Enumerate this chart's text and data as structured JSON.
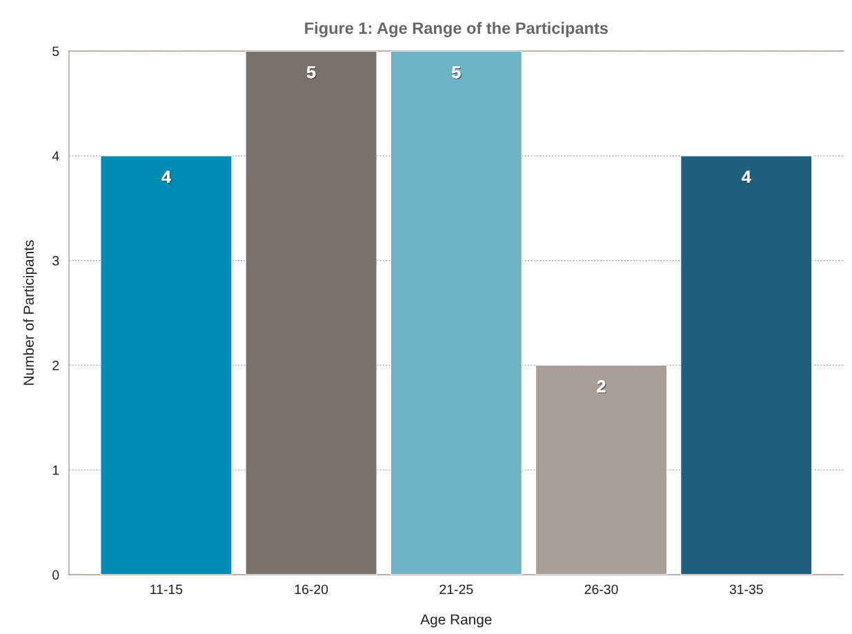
{
  "chart_data": {
    "type": "bar",
    "title": "Figure 1: Age Range of the Participants",
    "xlabel": "Age Range",
    "ylabel": "Number of Participants",
    "categories": [
      "11-15",
      "16-20",
      "21-25",
      "26-30",
      "31-35"
    ],
    "values": [
      4,
      5,
      5,
      2,
      4
    ],
    "colors": [
      "#008bb5",
      "#77726e",
      "#6fb2c6",
      "#a79f96",
      "#20607c"
    ],
    "ylim": [
      0,
      5
    ],
    "yticks": [
      0,
      1,
      2,
      3,
      4,
      5
    ],
    "grid": "y",
    "data_labels": true,
    "legend": false
  }
}
